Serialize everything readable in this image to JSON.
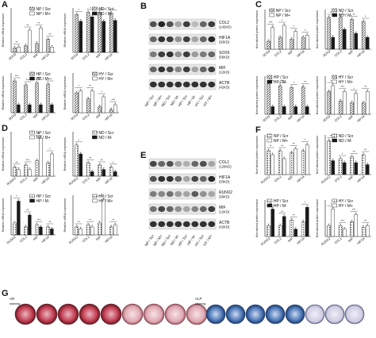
{
  "panels": {
    "A": "A",
    "B": "B",
    "C": "C",
    "D": "D",
    "E": "E",
    "F": "F",
    "G": "G"
  },
  "legends": {
    "np_scr": "NP / Scr",
    "np_m_plus": "NP / M+",
    "nd_scr": "ND / Scr",
    "nd_m_minus": "ND / M-",
    "hp_scr": "HP / Scr",
    "hp_m_minus": "HP / M-",
    "hy_scr": "HY / Scr",
    "hy_m_plus": "HY / M+"
  },
  "axis_labels": {
    "mrna": "Relative mRNA expression",
    "protein": "Normalized protein expression"
  },
  "genes_top": [
    "SOX9",
    "COL2",
    "MIF",
    "HIF1A"
  ],
  "genes_bottom": [
    "RUNX2",
    "COL1",
    "MIF",
    "HIF1A"
  ],
  "blot_B": {
    "rows": [
      "COL2\n(142KD)",
      "HIF1A\n(93KD)",
      "SOX9\n(56KD)",
      "MIF\n(12KD)",
      "ACTB\n(42KD)"
    ],
    "lanes": [
      "NP / Scr",
      "NP / M+",
      "ND / Scr",
      "ND / M-",
      "HP / Scr",
      "HP / M-",
      "HY / Scr",
      "HY / M+"
    ]
  },
  "blot_E": {
    "rows": [
      "COL1\n(120KD)",
      "HIF1A\n(93KD)",
      "RUNX2\n(56KD)",
      "MIF\n(12KD)",
      "ACTB\n(42KD)"
    ],
    "lanes": [
      "NP / Scr",
      "NP / M+",
      "ND / Scr",
      "ND / M-",
      "HP / Scr",
      "HP / M-",
      "HY / Scr",
      "HY / M+"
    ]
  },
  "stain_labels": {
    "ar": "AR staining",
    "alp": "ALP staining"
  },
  "significance": [
    "*",
    "**",
    "***"
  ],
  "colors": {
    "bar_dark": "#1a1a1a",
    "bar_hatch": "#888888",
    "bar_white": "#ffffff",
    "alizarin": "#b52a3a",
    "alp_blue": "#5a7fb8"
  }
}
